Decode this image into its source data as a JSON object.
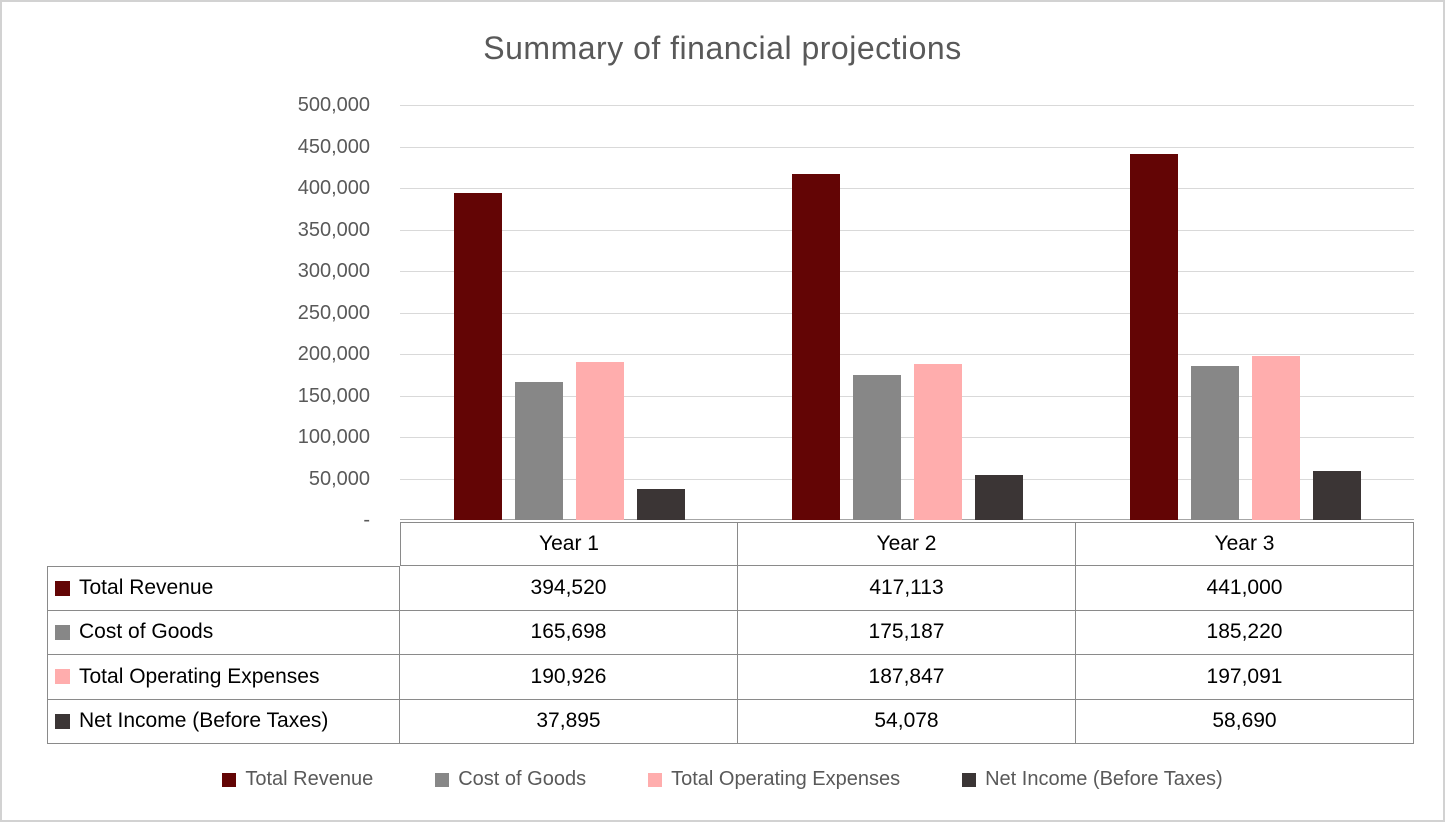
{
  "title": "Summary of financial projections",
  "chart_data": {
    "type": "bar",
    "title": "Summary of financial projections",
    "categories": [
      "Year 1",
      "Year 2",
      "Year 3"
    ],
    "series": [
      {
        "name": "Total Revenue",
        "color": "#630505",
        "values": [
          394520,
          417113,
          441000
        ],
        "display_values": [
          "394,520",
          "417,113",
          "441,000"
        ]
      },
      {
        "name": "Cost of Goods",
        "color": "#878787",
        "values": [
          165698,
          175187,
          185220
        ],
        "display_values": [
          "165,698",
          "175,187",
          "185,220"
        ]
      },
      {
        "name": "Total Operating Expenses",
        "color": "#ffadad",
        "values": [
          190926,
          187847,
          197091
        ],
        "display_values": [
          "190,926",
          "187,847",
          "197,091"
        ]
      },
      {
        "name": "Net Income (Before Taxes)",
        "color": "#3b3535",
        "values": [
          37895,
          54078,
          58690
        ],
        "display_values": [
          "37,895",
          "54,078",
          "58,690"
        ]
      }
    ],
    "y_axis": {
      "min": 0,
      "max": 500000,
      "step": 50000,
      "ticks": [
        "500,000",
        "450,000",
        "400,000",
        "350,000",
        "300,000",
        "250,000",
        "200,000",
        "150,000",
        "100,000",
        "50,000",
        "-"
      ]
    },
    "grid": true,
    "legend_position": "bottom",
    "data_table_shown": true
  }
}
